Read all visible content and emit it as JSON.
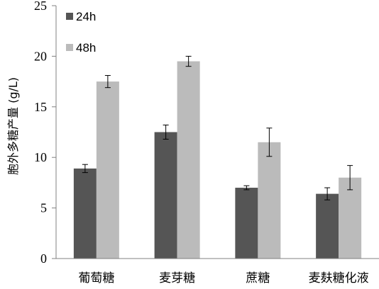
{
  "chart_data": {
    "type": "bar",
    "categories": [
      "葡萄糖",
      "麦芽糖",
      "蔗糖",
      "麦麸糖化液"
    ],
    "series": [
      {
        "name": "24h",
        "values": [
          8.9,
          12.5,
          7.0,
          6.4
        ],
        "errors": [
          0.4,
          0.7,
          0.2,
          0.6
        ],
        "color": "#555555"
      },
      {
        "name": "48h",
        "values": [
          17.5,
          19.5,
          11.5,
          8.0
        ],
        "errors": [
          0.6,
          0.5,
          1.4,
          1.2
        ],
        "color": "#bbbbbb"
      }
    ],
    "ylabel": "胞外多糖产量 (g/L)",
    "xlabel": "",
    "ylim": [
      0,
      25
    ],
    "yticks": [
      0,
      5,
      10,
      15,
      20,
      25
    ],
    "grid": false,
    "legend": "top-left"
  }
}
